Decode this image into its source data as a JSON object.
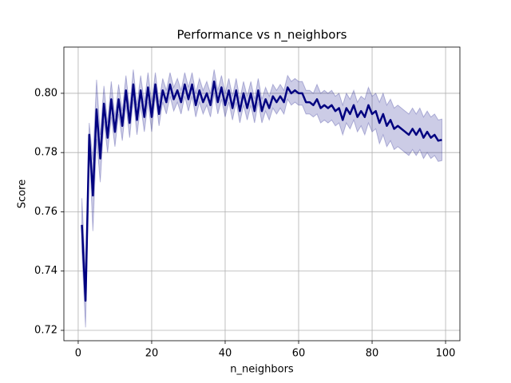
{
  "chart_data": {
    "type": "line",
    "title": "Performance vs n_neighbors",
    "x_label": "n_neighbors",
    "y_label": "Score",
    "x": [
      1,
      2,
      3,
      4,
      5,
      6,
      7,
      8,
      9,
      10,
      11,
      12,
      13,
      14,
      15,
      16,
      17,
      18,
      19,
      20,
      21,
      22,
      23,
      24,
      25,
      26,
      27,
      28,
      29,
      30,
      31,
      32,
      33,
      34,
      35,
      36,
      37,
      38,
      39,
      40,
      41,
      42,
      43,
      44,
      45,
      46,
      47,
      48,
      49,
      50,
      51,
      52,
      53,
      54,
      55,
      56,
      57,
      58,
      59,
      60,
      61,
      62,
      63,
      64,
      65,
      66,
      67,
      68,
      69,
      70,
      71,
      72,
      73,
      74,
      75,
      76,
      77,
      78,
      79,
      80,
      81,
      82,
      83,
      84,
      85,
      86,
      87,
      88,
      89,
      90,
      91,
      92,
      93,
      94,
      95,
      96,
      97,
      98,
      99
    ],
    "series": [
      {
        "color": "#000080",
        "values": [
          0.7556,
          0.73,
          0.786,
          0.7655,
          0.7946,
          0.778,
          0.7965,
          0.785,
          0.798,
          0.787,
          0.798,
          0.789,
          0.801,
          0.79,
          0.803,
          0.791,
          0.801,
          0.792,
          0.802,
          0.792,
          0.803,
          0.793,
          0.801,
          0.797,
          0.803,
          0.798,
          0.801,
          0.797,
          0.803,
          0.798,
          0.803,
          0.796,
          0.801,
          0.797,
          0.8,
          0.796,
          0.804,
          0.797,
          0.802,
          0.796,
          0.801,
          0.795,
          0.801,
          0.794,
          0.8,
          0.795,
          0.8,
          0.794,
          0.801,
          0.794,
          0.798,
          0.795,
          0.799,
          0.797,
          0.799,
          0.797,
          0.802,
          0.8,
          0.801,
          0.8,
          0.8,
          0.797,
          0.797,
          0.796,
          0.798,
          0.795,
          0.796,
          0.795,
          0.796,
          0.794,
          0.795,
          0.791,
          0.795,
          0.793,
          0.796,
          0.792,
          0.794,
          0.792,
          0.796,
          0.793,
          0.794,
          0.79,
          0.793,
          0.789,
          0.791,
          0.788,
          0.789,
          0.788,
          0.787,
          0.786,
          0.788,
          0.786,
          0.788,
          0.785,
          0.787,
          0.785,
          0.786,
          0.784,
          0.7843
        ],
        "errors": [
          0.009,
          0.009,
          0.004,
          0.012,
          0.01,
          0.008,
          0.006,
          0.005,
          0.006,
          0.005,
          0.005,
          0.005,
          0.005,
          0.005,
          0.005,
          0.005,
          0.005,
          0.005,
          0.005,
          0.005,
          0.004,
          0.004,
          0.004,
          0.004,
          0.004,
          0.004,
          0.004,
          0.004,
          0.004,
          0.004,
          0.004,
          0.004,
          0.004,
          0.004,
          0.004,
          0.004,
          0.004,
          0.004,
          0.004,
          0.004,
          0.004,
          0.004,
          0.004,
          0.004,
          0.004,
          0.004,
          0.004,
          0.004,
          0.004,
          0.004,
          0.004,
          0.004,
          0.004,
          0.004,
          0.004,
          0.004,
          0.004,
          0.004,
          0.004,
          0.004,
          0.004,
          0.004,
          0.004,
          0.004,
          0.005,
          0.005,
          0.005,
          0.005,
          0.005,
          0.005,
          0.005,
          0.005,
          0.005,
          0.005,
          0.005,
          0.005,
          0.005,
          0.006,
          0.006,
          0.006,
          0.006,
          0.007,
          0.007,
          0.007,
          0.007,
          0.007,
          0.007,
          0.007,
          0.007,
          0.007,
          0.007,
          0.007,
          0.007,
          0.007,
          0.007,
          0.007,
          0.007,
          0.007,
          0.007
        ]
      }
    ],
    "xlim": [
      -3.9,
      103.9
    ],
    "ylim": [
      0.7165,
      0.8156
    ],
    "xticks": [
      0,
      20,
      40,
      60,
      80,
      100
    ],
    "yticks": [
      0.72,
      0.74,
      0.76,
      0.78,
      {
        "value": 0.8,
        "label": "0.80"
      }
    ],
    "grid": true
  }
}
